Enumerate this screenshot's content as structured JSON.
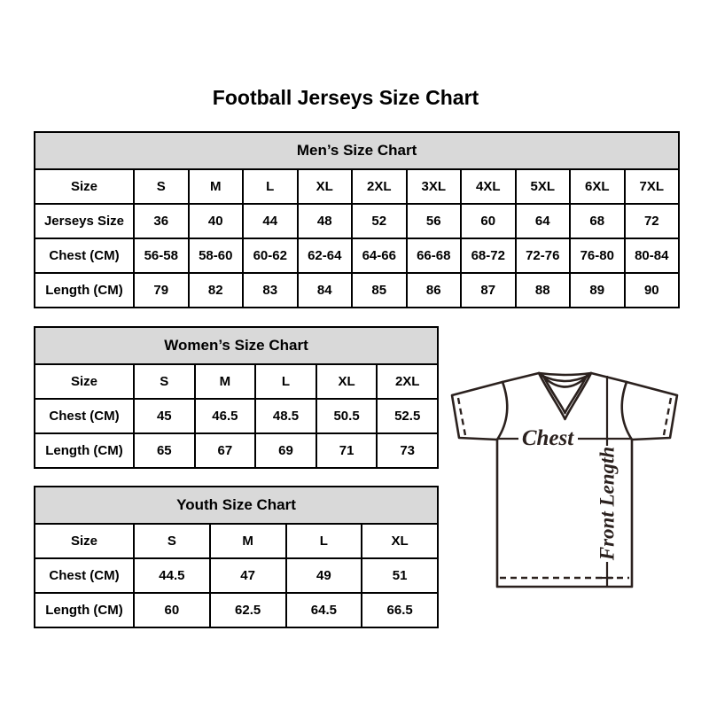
{
  "page": {
    "title": "Football Jerseys Size Chart"
  },
  "colors": {
    "table_border": "#000000",
    "header_background": "#d9d9d9",
    "text": "#000000",
    "diagram_stroke": "#2b211e"
  },
  "tables": {
    "men": {
      "header": "Men’s Size Chart",
      "rows": [
        [
          "Size",
          "S",
          "M",
          "L",
          "XL",
          "2XL",
          "3XL",
          "4XL",
          "5XL",
          "6XL",
          "7XL"
        ],
        [
          "Jerseys Size",
          "36",
          "40",
          "44",
          "48",
          "52",
          "56",
          "60",
          "64",
          "68",
          "72"
        ],
        [
          "Chest (CM)",
          "56-58",
          "58-60",
          "60-62",
          "62-64",
          "64-66",
          "66-68",
          "68-72",
          "72-76",
          "76-80",
          "80-84"
        ],
        [
          "Length (CM)",
          "79",
          "82",
          "83",
          "84",
          "85",
          "86",
          "87",
          "88",
          "89",
          "90"
        ]
      ]
    },
    "women": {
      "header": "Women’s Size Chart",
      "rows": [
        [
          "Size",
          "S",
          "M",
          "L",
          "XL",
          "2XL"
        ],
        [
          "Chest (CM)",
          "45",
          "46.5",
          "48.5",
          "50.5",
          "52.5"
        ],
        [
          "Length (CM)",
          "65",
          "67",
          "69",
          "71",
          "73"
        ]
      ]
    },
    "youth": {
      "header": "Youth Size Chart",
      "rows": [
        [
          "Size",
          "S",
          "M",
          "L",
          "XL"
        ],
        [
          "Chest (CM)",
          "44.5",
          "47",
          "49",
          "51"
        ],
        [
          "Length (CM)",
          "60",
          "62.5",
          "64.5",
          "66.5"
        ]
      ]
    }
  },
  "diagram": {
    "chest_label": "Chest",
    "front_length_label": "Front Length"
  }
}
